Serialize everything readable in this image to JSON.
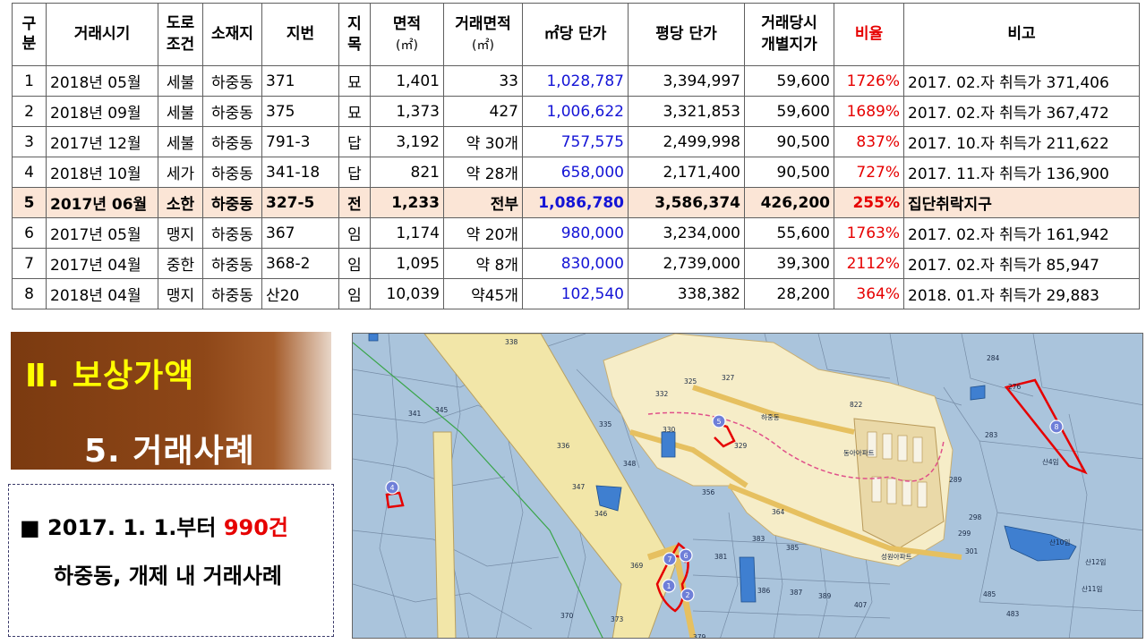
{
  "table": {
    "headers": {
      "no": "구분",
      "date": "거래시기",
      "road": "도로조건",
      "location": "소재지",
      "lot": "지번",
      "category": "지목",
      "area": "면적",
      "area_unit": "(㎡)",
      "trade_area": "거래면적",
      "trade_area_unit": "(㎡)",
      "price_sqm": "㎡당 단가",
      "price_pyeong": "평당 단가",
      "official_price": "거래당시개별지가",
      "ratio": "비율",
      "remark": "비고"
    },
    "rows": [
      {
        "no": "1",
        "date": "2018년 05월",
        "road": "세불",
        "location": "하중동",
        "lot": "371",
        "category": "묘",
        "area": "1,401",
        "trade_area": "33",
        "price_sqm": "1,028,787",
        "price_pyeong": "3,394,997",
        "official_price": "59,600",
        "ratio": "1726%",
        "remark": "2017. 02.자 취득가 371,406"
      },
      {
        "no": "2",
        "date": "2018년 09월",
        "road": "세불",
        "location": "하중동",
        "lot": "375",
        "category": "묘",
        "area": "1,373",
        "trade_area": "427",
        "price_sqm": "1,006,622",
        "price_pyeong": "3,321,853",
        "official_price": "59,600",
        "ratio": "1689%",
        "remark": "2017. 02.자 취득가 367,472"
      },
      {
        "no": "3",
        "date": "2017년 12월",
        "road": "세불",
        "location": "하중동",
        "lot": "791-3",
        "category": "답",
        "area": "3,192",
        "trade_area": "약 30개",
        "price_sqm": "757,575",
        "price_pyeong": "2,499,998",
        "official_price": "90,500",
        "ratio": "837%",
        "remark": "2017. 10.자 취득가 211,622"
      },
      {
        "no": "4",
        "date": "2018년 10월",
        "road": "세가",
        "location": "하중동",
        "lot": "341-18",
        "category": "답",
        "area": "821",
        "trade_area": "약 28개",
        "price_sqm": "658,000",
        "price_pyeong": "2,171,400",
        "official_price": "90,500",
        "ratio": "727%",
        "remark": "2017. 11.자 취득가 136,900"
      },
      {
        "no": "5",
        "date": "2017년 06월",
        "road": "소한",
        "location": "하중동",
        "lot": "327-5",
        "category": "전",
        "area": "1,233",
        "trade_area": "전부",
        "price_sqm": "1,086,780",
        "price_pyeong": "3,586,374",
        "official_price": "426,200",
        "ratio": "255%",
        "remark": "집단취락지구"
      },
      {
        "no": "6",
        "date": "2017년 05월",
        "road": "맹지",
        "location": "하중동",
        "lot": "367",
        "category": "임",
        "area": "1,174",
        "trade_area": "약 20개",
        "price_sqm": "980,000",
        "price_pyeong": "3,234,000",
        "official_price": "55,600",
        "ratio": "1763%",
        "remark": "2017. 02.자 취득가 161,942"
      },
      {
        "no": "7",
        "date": "2017년 04월",
        "road": "중한",
        "location": "하중동",
        "lot": "368-2",
        "category": "임",
        "area": "1,095",
        "trade_area": "약 8개",
        "price_sqm": "830,000",
        "price_pyeong": "2,739,000",
        "official_price": "39,300",
        "ratio": "2112%",
        "remark": "2017. 02.자 취득가 85,947"
      },
      {
        "no": "8",
        "date": "2018년 04월",
        "road": "맹지",
        "location": "하중동",
        "lot": "산20",
        "category": "임",
        "area": "10,039",
        "trade_area": "약45개",
        "price_sqm": "102,540",
        "price_pyeong": "338,382",
        "official_price": "28,200",
        "ratio": "364%",
        "remark": "2018. 01.자 취득가 29,883"
      }
    ]
  },
  "title": {
    "main": "Ⅱ. 보상가액",
    "sub": "5. 거래사례"
  },
  "summary": {
    "bullet": "■",
    "prefix": "2017. 1. 1.부터",
    "count": "990건",
    "line2": "하중동, 개제 내 거래사례"
  },
  "map": {
    "markers": [
      "1",
      "2",
      "4",
      "5",
      "6",
      "7",
      "8"
    ],
    "labels": [
      "338",
      "341",
      "345",
      "347",
      "348",
      "330",
      "332",
      "325",
      "327",
      "329",
      "335",
      "336",
      "346",
      "356",
      "364",
      "369",
      "370",
      "373",
      "379",
      "381",
      "383",
      "385",
      "386",
      "387",
      "389",
      "407",
      "485",
      "483",
      "284",
      "283",
      "289",
      "298",
      "299",
      "301",
      "276",
      "산10임",
      "산11임",
      "산12임",
      "산4임",
      "동아아파트",
      "성원아파트",
      "하중동",
      "822"
    ],
    "colors": {
      "water": "#aac4dc",
      "road": "#f2e6a8",
      "village": "#f6edc8",
      "apartment": "#ead9a8",
      "parcel_blue": "#3f7fd0",
      "marker": "#6f7fd8",
      "boundary": "#e60000",
      "zone_line": "#e0508a",
      "green_line": "#3aa54a"
    }
  },
  "colors": {
    "banner": "#8e4718",
    "title_yellow": "#ffff00",
    "highlight_row": "#fbe5d6",
    "blue_text": "#1414d6",
    "red_text": "#e60000"
  }
}
